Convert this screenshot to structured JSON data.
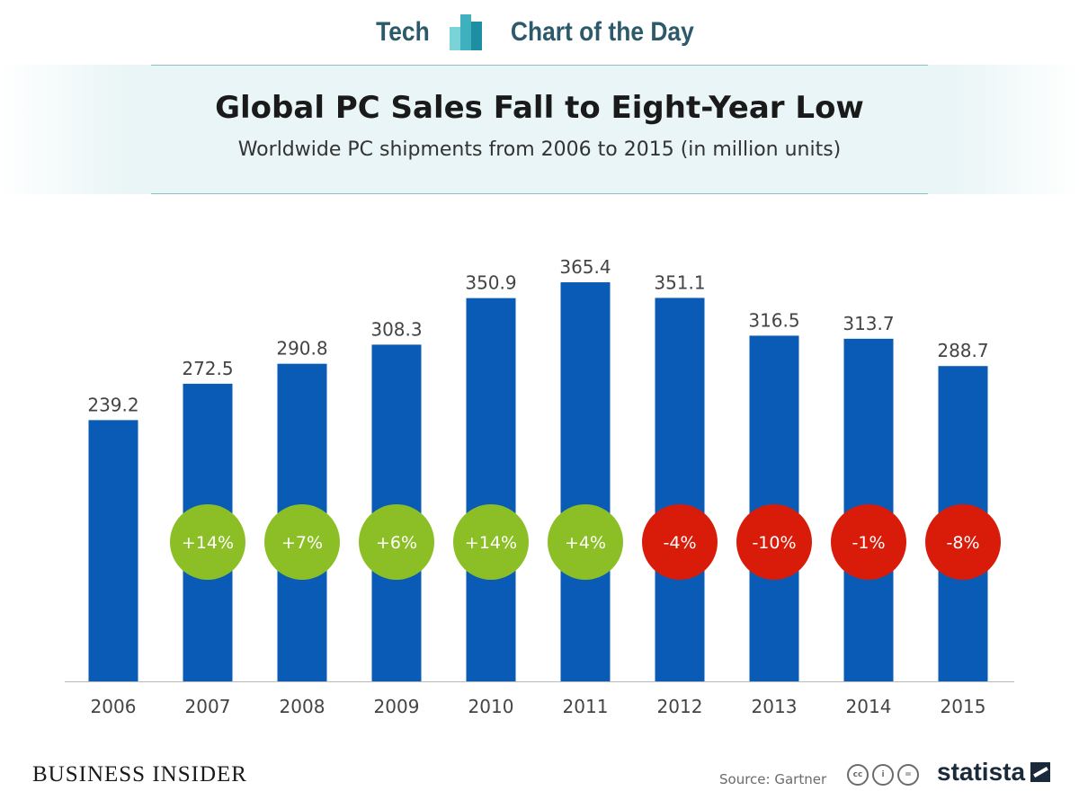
{
  "header": {
    "left_label": "Tech",
    "right_label": "Chart of the Day",
    "logo_colors": [
      "#7ad3d6",
      "#3fb0be",
      "#1e8fa3"
    ]
  },
  "chart_data": {
    "type": "bar",
    "title": "Global PC Sales Fall to Eight-Year Low",
    "subtitle": "Worldwide PC shipments from 2006 to 2015 (in million units)",
    "categories": [
      "2006",
      "2007",
      "2008",
      "2009",
      "2010",
      "2011",
      "2012",
      "2013",
      "2014",
      "2015"
    ],
    "values": [
      239.2,
      272.5,
      290.8,
      308.3,
      350.9,
      365.4,
      351.1,
      316.5,
      313.7,
      288.7
    ],
    "value_labels": [
      "239.2",
      "272.5",
      "290.8",
      "308.3",
      "350.9",
      "365.4",
      "351.1",
      "316.5",
      "313.7",
      "288.7"
    ],
    "change_labels": [
      null,
      "+14%",
      "+7%",
      "+6%",
      "+14%",
      "+4%",
      "-4%",
      "-10%",
      "-1%",
      "-8%"
    ],
    "ylim": [
      0,
      400
    ],
    "xlabel": "",
    "ylabel": "",
    "grid": false,
    "bar_color": "#0a5bb5",
    "positive_color": "#8cbf26",
    "negative_color": "#d91c0a"
  },
  "footer": {
    "brand": "BUSINESS INSIDER",
    "source": "Source: Gartner",
    "cc_icons": [
      "cc-icon",
      "by-icon",
      "nd-icon"
    ],
    "statista_label": "statista"
  }
}
